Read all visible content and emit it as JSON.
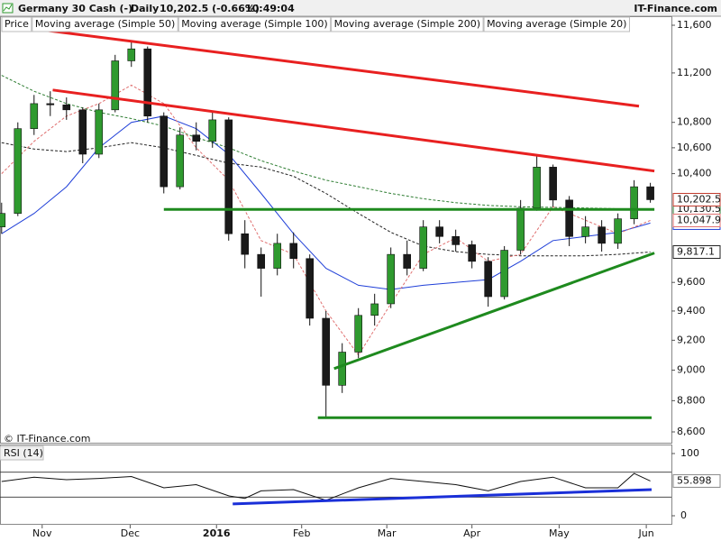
{
  "chart_data": {
    "type": "candlestick",
    "title": "Germany 30 Cash (-)",
    "interval": "Daily",
    "quote": "10,202.5 (-0.66%)",
    "time": "10:49:04",
    "source": "IT-Finance.com",
    "watermark": "© IT-Finance.com",
    "log_scale": true,
    "price_name": "Price",
    "up_color": "#2f9a2f",
    "down_color": "#1a1a1a",
    "x": [
      0,
      4,
      8,
      12,
      16,
      20,
      24,
      28,
      32,
      36,
      40,
      44,
      48,
      52,
      56,
      60,
      64,
      68,
      72,
      76,
      80,
      84,
      88,
      92,
      96,
      100,
      104,
      108,
      112,
      116,
      120,
      124,
      128,
      132,
      136,
      140,
      144,
      148,
      152,
      156,
      160
    ],
    "open": [
      10000,
      10100,
      10750,
      10950,
      10940,
      10900,
      10550,
      10900,
      11300,
      11400,
      10850,
      10300,
      10700,
      10650,
      10820,
      9950,
      9800,
      9700,
      9880,
      9770,
      9350,
      8900,
      9120,
      9370,
      9450,
      9800,
      9700,
      10000,
      9930,
      9870,
      9750,
      9500,
      9830,
      10140,
      10450,
      10200,
      9930,
      10000,
      9880,
      10060,
      10300
    ],
    "high": [
      10180,
      10800,
      11020,
      11050,
      11000,
      10920,
      10950,
      11350,
      11470,
      11420,
      10880,
      10760,
      10800,
      10880,
      10840,
      10050,
      9850,
      9950,
      9960,
      9800,
      9400,
      9180,
      9420,
      9520,
      9850,
      9900,
      10050,
      10050,
      9980,
      9900,
      9780,
      9860,
      10200,
      10540,
      10470,
      10230,
      10080,
      10050,
      10100,
      10350,
      10330
    ],
    "low": [
      9950,
      10080,
      10700,
      10850,
      10820,
      10480,
      10520,
      10880,
      11250,
      10800,
      10250,
      10280,
      10580,
      10600,
      9900,
      9700,
      9500,
      9650,
      9700,
      9300,
      8690,
      8850,
      9080,
      9300,
      9420,
      9650,
      9680,
      9880,
      9820,
      9700,
      9430,
      9480,
      9800,
      10120,
      10150,
      9860,
      9880,
      9820,
      9840,
      10020,
      10180
    ],
    "close": [
      10100,
      10750,
      10950,
      10940,
      10900,
      10550,
      10900,
      11300,
      11400,
      10850,
      10300,
      10700,
      10650,
      10820,
      9950,
      9800,
      9700,
      9880,
      9770,
      9350,
      8900,
      9120,
      9370,
      9450,
      9800,
      9700,
      10000,
      9930,
      9870,
      9750,
      9500,
      9830,
      10140,
      10450,
      10200,
      9930,
      10000,
      9880,
      10060,
      10300,
      10202.5
    ],
    "value_labels": [
      null,
      null,
      null,
      null,
      null,
      null,
      null,
      null,
      null,
      null,
      null,
      null,
      null,
      null,
      null,
      null,
      null,
      null,
      null,
      null,
      null,
      null,
      null,
      null,
      null,
      null,
      null,
      null,
      null,
      null,
      null,
      null,
      null,
      null,
      null,
      null,
      null,
      null,
      null,
      null,
      "10,202.5"
    ],
    "series": [
      {
        "name": "Moving average (Simple 50)",
        "color": "#1f3fd8",
        "dash": false,
        "x": [
          0,
          8,
          16,
          24,
          32,
          40,
          48,
          56,
          64,
          72,
          80,
          88,
          96,
          104,
          112,
          120,
          128,
          136,
          144,
          152,
          160
        ],
        "values": [
          9950,
          10100,
          10300,
          10600,
          10800,
          10850,
          10750,
          10550,
          10250,
          9950,
          9700,
          9580,
          9550,
          9580,
          9600,
          9620,
          9750,
          9900,
          9930,
          9960,
          10028.3
        ],
        "value_labels": [
          null,
          null,
          null,
          null,
          null,
          null,
          null,
          null,
          null,
          null,
          null,
          null,
          null,
          null,
          null,
          null,
          null,
          null,
          null,
          null,
          "10,028.3"
        ]
      },
      {
        "name": "Moving average (Simple 100)",
        "color": "#222222",
        "dash": true,
        "x": [
          0,
          8,
          16,
          24,
          32,
          40,
          48,
          56,
          64,
          72,
          80,
          88,
          96,
          104,
          112,
          120,
          128,
          136,
          144,
          152,
          160
        ],
        "values": [
          10640,
          10590,
          10570,
          10600,
          10640,
          10600,
          10540,
          10480,
          10450,
          10380,
          10250,
          10100,
          9960,
          9860,
          9820,
          9800,
          9790,
          9790,
          9790,
          9800,
          9817.1
        ],
        "value_labels": [
          null,
          null,
          null,
          null,
          null,
          null,
          null,
          null,
          null,
          null,
          null,
          null,
          null,
          null,
          null,
          null,
          null,
          null,
          null,
          null,
          "9,817.1"
        ]
      },
      {
        "name": "Moving average (Simple 200)",
        "color": "#2e7d32",
        "dash": true,
        "x": [
          0,
          8,
          16,
          24,
          32,
          40,
          48,
          56,
          64,
          72,
          80,
          88,
          96,
          104,
          112,
          120,
          128,
          136,
          144,
          152,
          160
        ],
        "values": [
          11180,
          11050,
          10950,
          10880,
          10830,
          10770,
          10680,
          10600,
          10500,
          10420,
          10350,
          10300,
          10250,
          10210,
          10180,
          10160,
          10150,
          10145,
          10140,
          10135,
          10130.5
        ],
        "value_labels": [
          null,
          null,
          null,
          null,
          null,
          null,
          null,
          null,
          null,
          null,
          null,
          null,
          null,
          null,
          null,
          null,
          null,
          null,
          null,
          null,
          "10,130.5"
        ]
      },
      {
        "name": "Moving average (Simple 20)",
        "color": "#e07070",
        "dash": true,
        "x": [
          0,
          8,
          16,
          24,
          32,
          40,
          48,
          56,
          64,
          72,
          80,
          88,
          96,
          104,
          112,
          120,
          128,
          136,
          144,
          152,
          160
        ],
        "values": [
          10400,
          10650,
          10850,
          10950,
          11100,
          10950,
          10600,
          10350,
          9900,
          9800,
          9400,
          9100,
          9450,
          9800,
          9920,
          9750,
          9800,
          10150,
          10050,
          9950,
          10047.9
        ],
        "value_labels": [
          null,
          null,
          null,
          null,
          null,
          null,
          null,
          null,
          null,
          null,
          null,
          null,
          null,
          null,
          null,
          null,
          null,
          null,
          null,
          null,
          "10,047.9"
        ]
      }
    ],
    "trendlines": [
      {
        "color": "#e82020",
        "x": [
          7.8,
          157.2
        ],
        "values": [
          11570,
          10930
        ]
      },
      {
        "color": "#e82020",
        "x": [
          12.6,
          161
        ],
        "values": [
          11060,
          10420
        ]
      },
      {
        "color": "#1e8a1e",
        "x": [
          40,
          161
        ],
        "values": [
          10130,
          10130
        ]
      },
      {
        "color": "#1e8a1e",
        "x": [
          82,
          161
        ],
        "values": [
          9010,
          9810
        ]
      },
      {
        "color": "#1e8a1e",
        "x": [
          78,
          160.3
        ],
        "values": [
          8690,
          8690
        ]
      }
    ],
    "xlim": [
      -0.4,
      165.2
    ],
    "xticks": [
      {
        "value": 10,
        "label": "Nov"
      },
      {
        "value": 31.7,
        "label": "Dec"
      },
      {
        "value": 53,
        "label": "2016"
      },
      {
        "value": 74,
        "label": "Feb"
      },
      {
        "value": 95,
        "label": "Mar"
      },
      {
        "value": 116,
        "label": "Apr"
      },
      {
        "value": 137.5,
        "label": "May"
      },
      {
        "value": 159,
        "label": "Jun"
      }
    ],
    "ylim": [
      8600,
      11600
    ],
    "yticks": [
      {
        "value": 8600,
        "label": "8,600"
      },
      {
        "value": 8800,
        "label": "8,800"
      },
      {
        "value": 9000,
        "label": "9,000"
      },
      {
        "value": 9200,
        "label": "9,200"
      },
      {
        "value": 9400,
        "label": "9,400"
      },
      {
        "value": 9600,
        "label": "9,600"
      },
      {
        "value": 10400,
        "label": "10,400"
      },
      {
        "value": 10600,
        "label": "10,600"
      },
      {
        "value": 10800,
        "label": "10,800"
      },
      {
        "value": 11200,
        "label": "11,200"
      },
      {
        "value": 11600,
        "label": "11,600"
      }
    ],
    "rsi": {
      "type": "line",
      "title": "RSI (14)",
      "color": "#111111",
      "x": [
        0,
        8,
        16,
        24,
        32,
        40,
        48,
        56,
        60,
        64,
        72,
        80,
        88,
        96,
        104,
        112,
        120,
        128,
        136,
        144,
        152,
        156,
        160
      ],
      "values": [
        55,
        62,
        58,
        60,
        63,
        45,
        50,
        32,
        28,
        40,
        42,
        25,
        45,
        60,
        55,
        50,
        40,
        55,
        62,
        45,
        45,
        68,
        55.898
      ],
      "value_labels": [
        null,
        null,
        null,
        null,
        null,
        null,
        null,
        null,
        null,
        null,
        null,
        null,
        null,
        null,
        null,
        null,
        null,
        null,
        null,
        null,
        null,
        null,
        "55.898"
      ],
      "ylim": [
        0,
        100
      ],
      "yticks": [
        0,
        100
      ],
      "levels": [
        30,
        70
      ],
      "trendline": {
        "color": "#1a2fd8",
        "x": [
          57,
          160.3
        ],
        "values": [
          19,
          42
        ]
      }
    }
  }
}
